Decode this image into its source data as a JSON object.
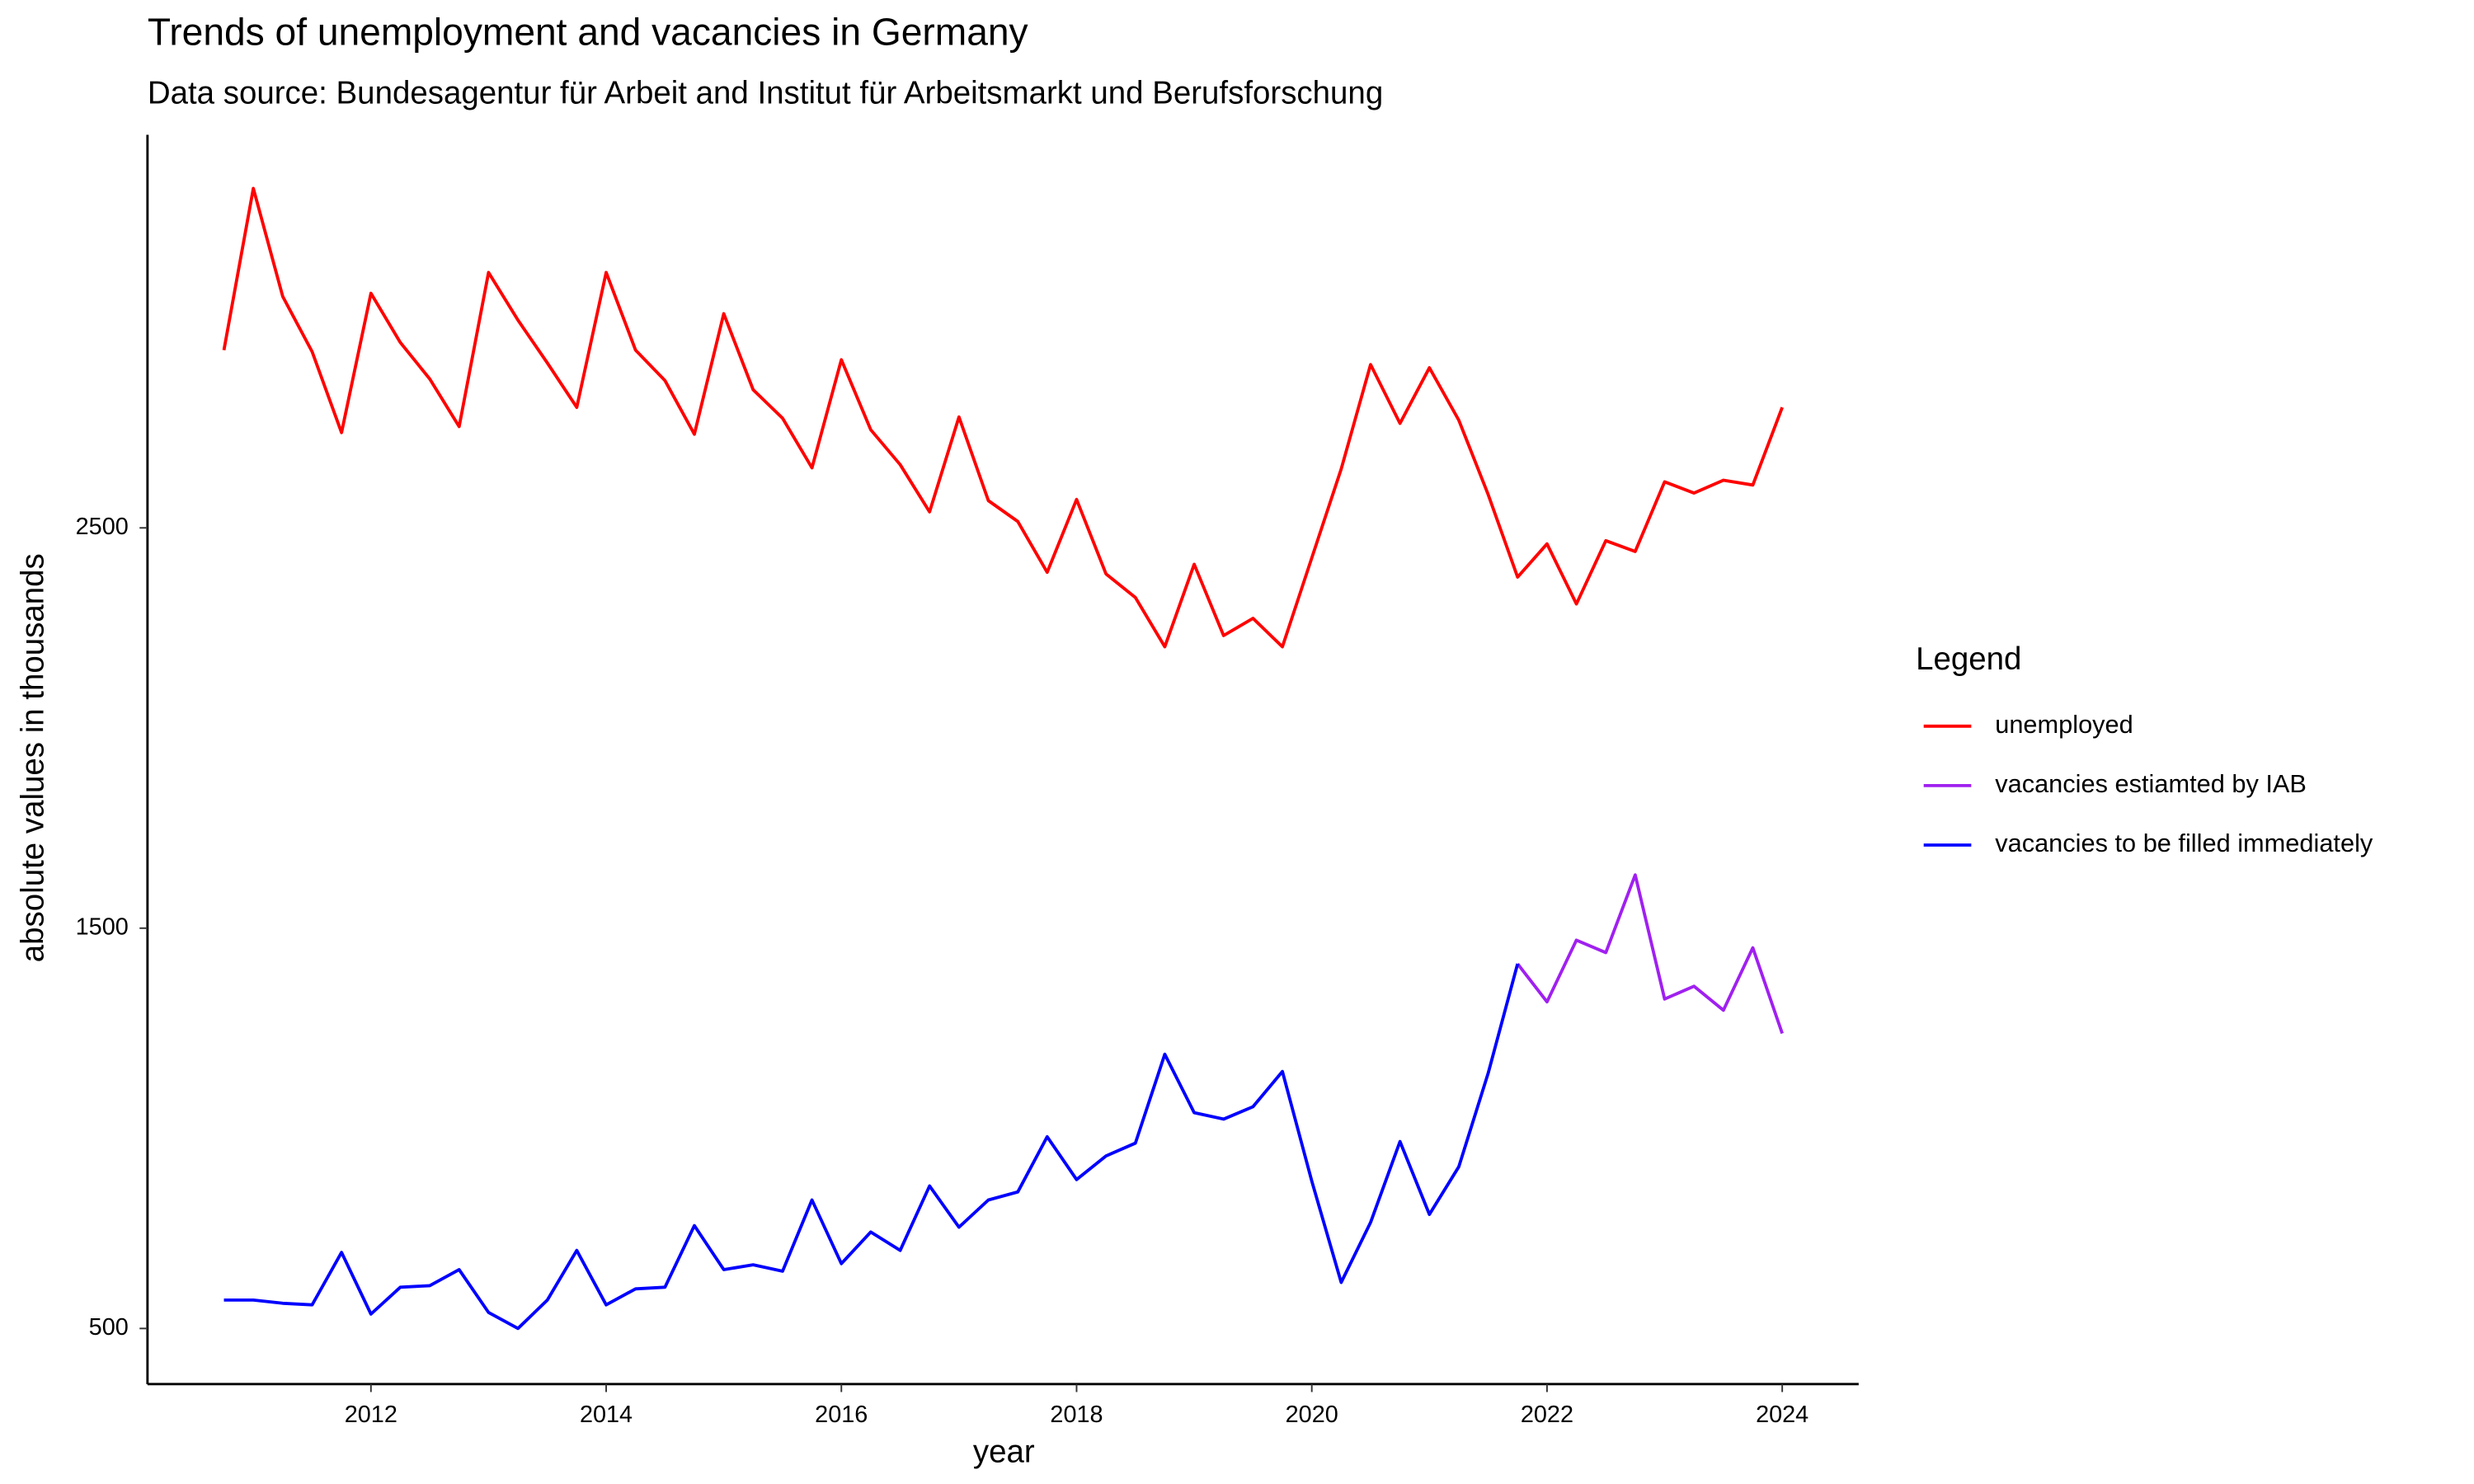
{
  "chart_data": {
    "type": "line",
    "title": "Trends of unemployment and vacancies in Germany",
    "subtitle": "Data source: Bundesagentur für Arbeit and Institut für Arbeitsmarkt und Berufsforschung",
    "x_label": "year",
    "y_label": "absolute values in thousands",
    "legend_title": "Legend",
    "legend_position": "right",
    "x": [
      2010.75,
      2011,
      2011.25,
      2011.5,
      2011.75,
      2012,
      2012.25,
      2012.5,
      2012.75,
      2013,
      2013.25,
      2013.5,
      2013.75,
      2014,
      2014.25,
      2014.5,
      2014.75,
      2015,
      2015.25,
      2015.5,
      2015.75,
      2016,
      2016.25,
      2016.5,
      2016.75,
      2017,
      2017.25,
      2017.5,
      2017.75,
      2018,
      2018.25,
      2018.5,
      2018.75,
      2019,
      2019.25,
      2019.5,
      2019.75,
      2020,
      2020.25,
      2020.5,
      2020.75,
      2021,
      2021.25,
      2021.5,
      2021.75,
      2022,
      2022.25,
      2022.5,
      2022.75,
      2023,
      2023.25,
      2023.5,
      2023.75,
      2024
    ],
    "series": [
      {
        "name": "unemployed",
        "color": "#ff0000",
        "values": [
          2944,
          3348,
          3078,
          2940,
          2738,
          3086,
          2963,
          2872,
          2753,
          3138,
          3019,
          2912,
          2801,
          3138,
          2944,
          2868,
          2734,
          3035,
          2845,
          2774,
          2650,
          2920,
          2745,
          2658,
          2540,
          2777,
          2568,
          2516,
          2389,
          2571,
          2385,
          2326,
          2203,
          2409,
          2231,
          2274,
          2203,
          2425,
          2647,
          2908,
          2761,
          2900,
          2769,
          2583,
          2377,
          2460,
          2310,
          2468,
          2441,
          2615,
          2587,
          2619,
          2607,
          2801
        ]
      },
      {
        "name": "vacancies estiamted by IAB",
        "color": "#a020f0",
        "values": [
          null,
          null,
          null,
          null,
          null,
          null,
          null,
          null,
          null,
          null,
          null,
          null,
          null,
          null,
          null,
          null,
          null,
          null,
          null,
          null,
          null,
          null,
          null,
          null,
          null,
          null,
          null,
          null,
          null,
          null,
          null,
          null,
          null,
          null,
          null,
          null,
          null,
          null,
          null,
          null,
          null,
          null,
          null,
          null,
          1411,
          1316,
          1470,
          1439,
          1633,
          1323,
          1355,
          1295,
          1451,
          1237
        ]
      },
      {
        "name": "vacancies to be filled immediately",
        "color": "#0000ff",
        "values": [
          571,
          571,
          563,
          559,
          690,
          536,
          603,
          607,
          647,
          540,
          500,
          571,
          695,
          559,
          599,
          603,
          757,
          647,
          659,
          643,
          821,
          662,
          741,
          695,
          856,
          753,
          821,
          841,
          979,
          872,
          931,
          963,
          1185,
          1039,
          1023,
          1054,
          1142,
          868,
          615,
          765,
          967,
          785,
          904,
          1138,
          1411,
          null,
          null,
          null,
          null,
          null,
          null,
          null,
          null,
          null
        ]
      }
    ],
    "xlim": [
      2010.1,
      2024.65
    ],
    "xticks": [
      2012,
      2014,
      2016,
      2018,
      2020,
      2022,
      2024
    ],
    "ylim": [
      361,
      3482
    ],
    "yticks": [
      500,
      1500,
      2500
    ],
    "grid": false
  }
}
